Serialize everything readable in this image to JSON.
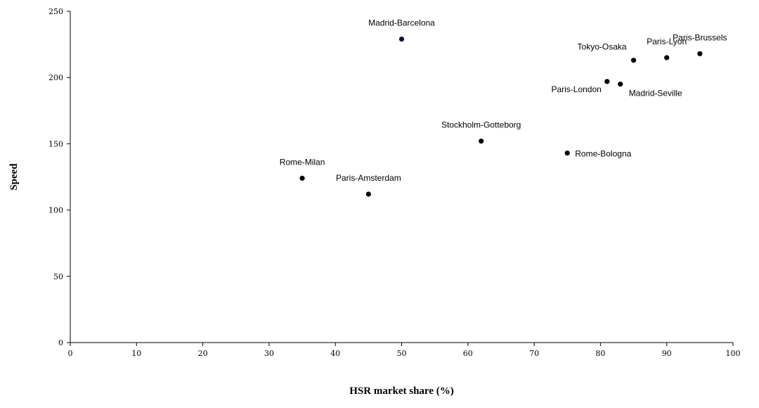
{
  "chart_data": {
    "type": "scatter",
    "xlabel": "HSR market share (%)",
    "ylabel": "Speed",
    "xlim": [
      0,
      100
    ],
    "ylim": [
      0,
      250
    ],
    "xticks": [
      0,
      10,
      20,
      30,
      40,
      50,
      60,
      70,
      80,
      90,
      100
    ],
    "yticks": [
      0,
      50,
      100,
      150,
      200,
      250
    ],
    "grid": false,
    "legend": "none",
    "marker_color": "#000000",
    "points": [
      {
        "label": "Madrid-Barcelona",
        "x": 50,
        "y": 229,
        "label_position": "above",
        "color": "#0d0d3a"
      },
      {
        "label": "Tokyo-Osaka",
        "x": 85,
        "y": 213,
        "label_position": "above-left"
      },
      {
        "label": "Paris-Lyon",
        "x": 90,
        "y": 215,
        "label_position": "above"
      },
      {
        "label": "Paris-Brussels",
        "x": 95,
        "y": 218,
        "label_position": "above"
      },
      {
        "label": "Paris-London",
        "x": 81,
        "y": 197,
        "label_position": "below-left"
      },
      {
        "label": "Madrid-Seville",
        "x": 83,
        "y": 195,
        "label_position": "below-right"
      },
      {
        "label": "Stockholm-Gotteborg",
        "x": 62,
        "y": 152,
        "label_position": "above"
      },
      {
        "label": "Rome-Bologna",
        "x": 75,
        "y": 143,
        "label_position": "right"
      },
      {
        "label": "Rome-Milan",
        "x": 35,
        "y": 124,
        "label_position": "above"
      },
      {
        "label": "Paris-Amsterdam",
        "x": 45,
        "y": 112,
        "label_position": "above"
      }
    ]
  }
}
